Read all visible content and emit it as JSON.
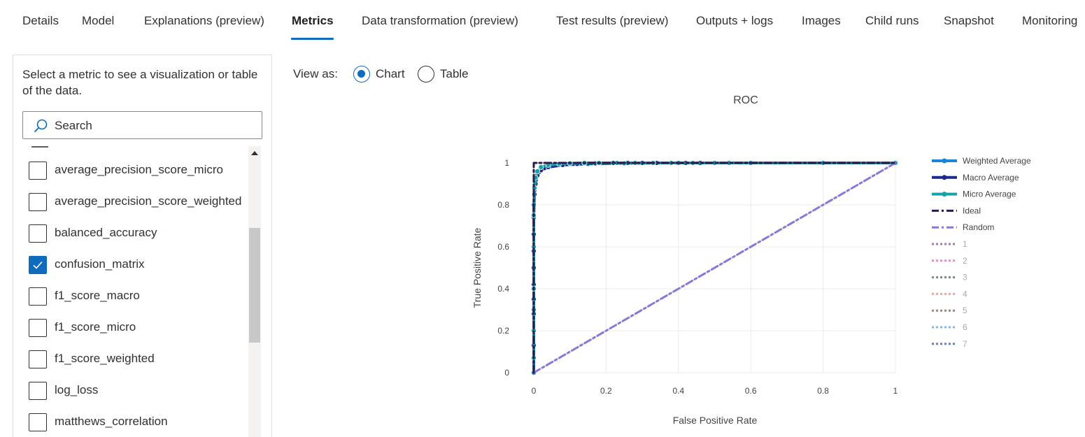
{
  "tabs": [
    {
      "label": "Details"
    },
    {
      "label": "Model"
    },
    {
      "label": "Explanations (preview)"
    },
    {
      "label": "Metrics",
      "active": true
    },
    {
      "label": "Data transformation (preview)"
    },
    {
      "label": "Test results (preview)"
    },
    {
      "label": "Outputs + logs"
    },
    {
      "label": "Images"
    },
    {
      "label": "Child runs"
    },
    {
      "label": "Snapshot"
    },
    {
      "label": "Monitoring"
    }
  ],
  "panel": {
    "description": "Select a metric to see a visualization or table of the data.",
    "search_placeholder": "Search",
    "metrics": [
      {
        "label": "average_precision_score_micro",
        "checked": false
      },
      {
        "label": "average_precision_score_weighted",
        "checked": false
      },
      {
        "label": "balanced_accuracy",
        "checked": false
      },
      {
        "label": "confusion_matrix",
        "checked": true
      },
      {
        "label": "f1_score_macro",
        "checked": false
      },
      {
        "label": "f1_score_micro",
        "checked": false
      },
      {
        "label": "f1_score_weighted",
        "checked": false
      },
      {
        "label": "log_loss",
        "checked": false
      },
      {
        "label": "matthews_correlation",
        "checked": false
      }
    ]
  },
  "view_as": {
    "label": "View as:",
    "options": [
      {
        "label": "Chart",
        "selected": true
      },
      {
        "label": "Table",
        "selected": false
      }
    ]
  },
  "icons": {
    "search": "search-icon",
    "check": "check-icon",
    "scroll_up": "scroll-up-icon"
  },
  "colors": {
    "accent": "#0f6cbd",
    "weighted": "#1a84d6",
    "macro": "#1c2a8c",
    "micro": "#17a2a8",
    "ideal": "#2a1a4e",
    "random": "#8b78d6"
  },
  "chart_data": {
    "type": "line",
    "title": "ROC",
    "xlabel": "False Positive Rate",
    "ylabel": "True Positive Rate",
    "xlim": [
      0,
      1
    ],
    "ylim": [
      0,
      1
    ],
    "xticks": [
      "0",
      "0.2",
      "0.4",
      "0.6",
      "0.8",
      "1"
    ],
    "yticks": [
      "0",
      "0.2",
      "0.4",
      "0.6",
      "0.8",
      "1"
    ],
    "grid": true,
    "legend_position": "right",
    "series": [
      {
        "name": "Weighted Average",
        "color": "#1a84d6",
        "style": "solid",
        "markers": true,
        "x": [
          0,
          0,
          0,
          0,
          0.002,
          0.005,
          0.01,
          0.02,
          0.04,
          0.08,
          0.15,
          0.25,
          0.4,
          0.6,
          0.8,
          1
        ],
        "y": [
          0,
          0.3,
          0.6,
          0.8,
          0.88,
          0.92,
          0.95,
          0.97,
          0.98,
          0.99,
          0.995,
          0.998,
          1,
          1,
          1,
          1
        ]
      },
      {
        "name": "Macro Average",
        "color": "#1c2a8c",
        "style": "solid",
        "markers": true,
        "x": [
          0,
          0,
          0,
          0,
          0,
          0,
          0,
          0,
          0,
          0,
          0.002,
          0.005,
          0.01,
          0.02,
          0.04,
          0.08,
          0.12,
          0.17,
          0.22,
          0.26,
          0.3,
          0.34,
          0.38,
          0.42,
          0.46,
          0.54,
          1
        ],
        "y": [
          0.07,
          0.13,
          0.2,
          0.28,
          0.35,
          0.42,
          0.5,
          0.58,
          0.66,
          0.74,
          0.85,
          0.9,
          0.94,
          0.965,
          0.98,
          0.99,
          0.995,
          0.998,
          1,
          1,
          1,
          1,
          1,
          1,
          1,
          1,
          1
        ]
      },
      {
        "name": "Micro Average",
        "color": "#17a2a8",
        "style": "solid",
        "markers": true,
        "x": [
          0,
          0,
          0,
          0,
          0,
          0.002,
          0.005,
          0.01,
          0.02,
          0.04,
          0.07,
          0.1,
          0.14,
          0.18,
          0.23,
          0.28,
          0.33,
          0.38,
          0.44,
          0.5,
          0.54,
          1
        ],
        "y": [
          0.07,
          0.2,
          0.4,
          0.6,
          0.75,
          0.88,
          0.93,
          0.96,
          0.98,
          0.99,
          0.995,
          0.998,
          1,
          1,
          1,
          1,
          1,
          1,
          1,
          1,
          1,
          1
        ]
      },
      {
        "name": "Ideal",
        "color": "#2a1a4e",
        "style": "dashdot",
        "markers": false,
        "x": [
          0,
          0,
          1
        ],
        "y": [
          0,
          1,
          1
        ]
      },
      {
        "name": "Random",
        "color": "#8b78d6",
        "style": "dashdot",
        "markers": false,
        "x": [
          0,
          1
        ],
        "y": [
          0,
          1
        ]
      },
      {
        "name": "1",
        "color": "#9e80b0",
        "style": "dot",
        "markers": false,
        "x": [],
        "y": []
      },
      {
        "name": "2",
        "color": "#e88ac4",
        "style": "dot",
        "markers": false,
        "x": [],
        "y": []
      },
      {
        "name": "3",
        "color": "#7a8a86",
        "style": "dot",
        "markers": false,
        "x": [],
        "y": []
      },
      {
        "name": "4",
        "color": "#e8a8a4",
        "style": "dot",
        "markers": false,
        "x": [],
        "y": []
      },
      {
        "name": "5",
        "color": "#988878",
        "style": "dot",
        "markers": false,
        "x": [],
        "y": []
      },
      {
        "name": "6",
        "color": "#88b8e0",
        "style": "dot",
        "markers": false,
        "x": [],
        "y": []
      },
      {
        "name": "7",
        "color": "#7080a8",
        "style": "dot",
        "markers": false,
        "x": [],
        "y": []
      }
    ]
  }
}
